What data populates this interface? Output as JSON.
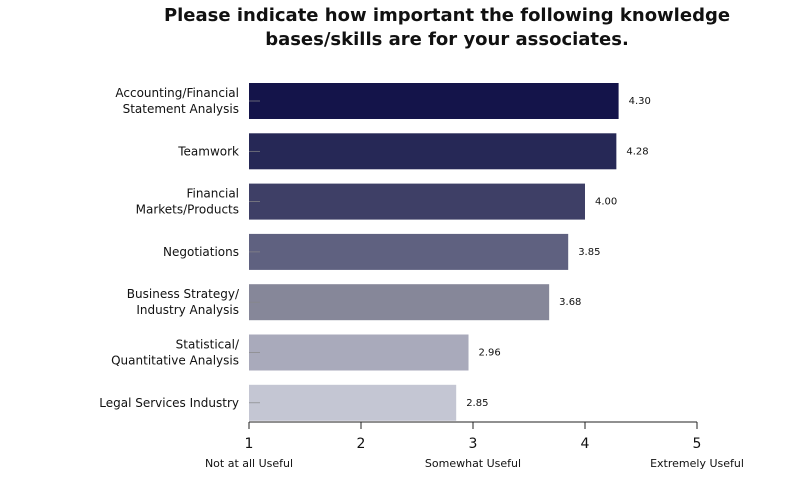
{
  "chart_data": {
    "type": "bar",
    "orientation": "horizontal",
    "title": "Please indicate how important the following knowledge\nbases/skills are for your associates.",
    "categories": [
      "Accounting/Financial\nStatement Analysis",
      "Teamwork",
      "Financial\nMarkets/Products",
      "Negotiations",
      "Business Strategy/\nIndustry Analysis",
      "Statistical/\nQuantitative Analysis",
      "Legal Services Industry"
    ],
    "values": [
      4.3,
      4.28,
      4.0,
      3.85,
      3.68,
      2.96,
      2.85
    ],
    "value_labels": [
      "4.30",
      "4.28",
      "4.00",
      "3.85",
      "3.68",
      "2.96",
      "2.85"
    ],
    "colors": [
      "#14144a",
      "#262856",
      "#3e3f66",
      "#5f6180",
      "#868799",
      "#a9aabb",
      "#c4c6d3"
    ],
    "xlim": [
      1,
      5
    ],
    "xticks": [
      1,
      2,
      3,
      4,
      5
    ],
    "scale_labels": [
      {
        "value": 1,
        "label": "Not at all Useful"
      },
      {
        "value": 3,
        "label": "Somewhat Useful"
      },
      {
        "value": 5,
        "label": "Extremely Useful"
      }
    ]
  }
}
